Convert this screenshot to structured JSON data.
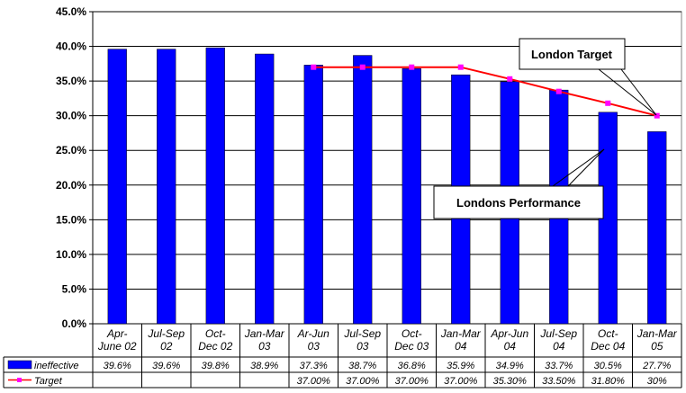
{
  "chart_data": {
    "type": "bar",
    "categories": [
      [
        "Apr-",
        "June 02"
      ],
      [
        "Jul-Sep",
        "02"
      ],
      [
        "Oct-",
        "Dec 02"
      ],
      [
        "Jan-Mar",
        "03"
      ],
      [
        "Ar-Jun",
        "03"
      ],
      [
        "Jul-Sep",
        "03"
      ],
      [
        "Oct-",
        "Dec 03"
      ],
      [
        "Jan-Mar",
        "04"
      ],
      [
        "Apr-Jun",
        "04"
      ],
      [
        "Jul-Sep",
        "04"
      ],
      [
        "Oct-",
        "Dec 04"
      ],
      [
        "Jan-Mar",
        "05"
      ]
    ],
    "ylim": [
      0,
      45
    ],
    "yticks": [
      "0.0%",
      "5.0%",
      "10.0%",
      "15.0%",
      "20.0%",
      "25.0%",
      "30.0%",
      "35.0%",
      "40.0%",
      "45.0%"
    ],
    "grid": true,
    "series": [
      {
        "name": "ineffective",
        "type": "bar",
        "color": "#0000ff",
        "values": [
          39.6,
          39.6,
          39.8,
          38.9,
          37.3,
          38.7,
          36.8,
          35.9,
          34.9,
          33.7,
          30.5,
          27.7
        ],
        "labels": [
          "39.6%",
          "39.6%",
          "39.8%",
          "38.9%",
          "37.3%",
          "38.7%",
          "36.8%",
          "35.9%",
          "34.9%",
          "33.7%",
          "30.5%",
          "27.7%"
        ]
      },
      {
        "name": "Target",
        "type": "line",
        "color": "#ff0000",
        "marker_color": "#ff00ff",
        "values": [
          null,
          null,
          null,
          null,
          37.0,
          37.0,
          37.0,
          37.0,
          35.3,
          33.5,
          31.8,
          30.0
        ],
        "labels": [
          "",
          "",
          "",
          "",
          "37.00%",
          "37.00%",
          "37.00%",
          "37.00%",
          "35.30%",
          "33.50%",
          "31.80%",
          "30%"
        ]
      }
    ],
    "annotations": [
      {
        "text": "London Target",
        "points_to": "Target"
      },
      {
        "text": "Londons Performance",
        "points_to": "ineffective"
      }
    ]
  }
}
